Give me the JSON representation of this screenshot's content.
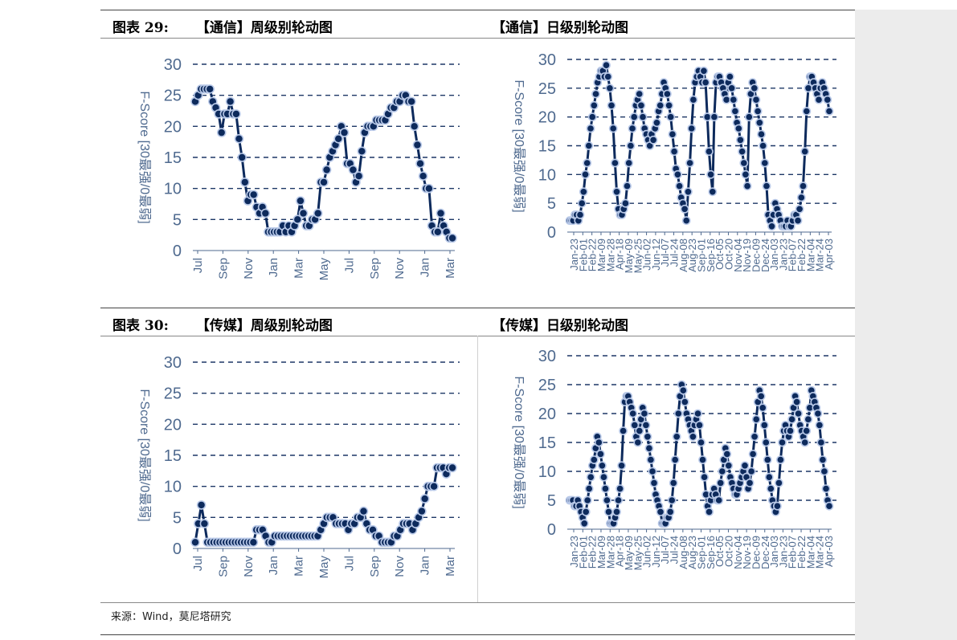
{
  "figures": [
    {
      "label": "图表 29:",
      "title": "【通信】周级别轮动图"
    },
    {
      "label": "",
      "title": "【通信】日级别轮动图"
    },
    {
      "label": "图表 30:",
      "title": "【传媒】周级别轮动图"
    },
    {
      "label": "",
      "title": "【传媒】日级别轮动图"
    }
  ],
  "source": "来源：Wind，莫尼塔研究",
  "colors": {
    "line": "#0d2a5c",
    "marker_fill": "#0d2a5c",
    "marker_edge": "#b9c9e8",
    "grid": "#1d3766",
    "axis_text": "#4f6a8f"
  },
  "chart_data": [
    {
      "type": "line",
      "title": "【通信】周级别轮动图",
      "ylabel": "F-Score [30最强/0最弱]",
      "ylim": [
        0,
        30
      ],
      "yticks": [
        "0",
        "5",
        "10",
        "15",
        "20",
        "25",
        "30"
      ],
      "xticks": [
        "Jul",
        "Sep",
        "Nov",
        "Jan",
        "Mar",
        "May",
        "Jul",
        "Sep",
        "Nov",
        "Jan",
        "Mar"
      ],
      "grid": "dashed horizontal",
      "values": [
        24,
        25,
        26,
        26,
        26,
        26,
        24,
        23,
        22,
        19,
        22,
        22,
        24,
        22,
        22,
        18,
        15,
        11,
        8,
        9,
        9,
        7,
        6,
        7,
        6,
        3,
        3,
        3,
        3,
        3,
        4,
        3,
        4,
        3,
        4,
        5,
        8,
        6,
        4,
        4,
        5,
        5,
        6,
        11,
        11,
        13,
        15,
        16,
        17,
        18,
        20,
        19,
        14,
        14,
        13,
        11,
        12,
        16,
        19,
        20,
        20,
        20,
        21,
        21,
        21,
        21,
        22,
        23,
        23,
        24,
        24,
        25,
        25,
        24,
        24,
        20,
        17,
        14,
        12,
        10,
        10,
        4,
        3,
        3,
        6,
        4,
        3,
        2,
        2
      ]
    },
    {
      "type": "line",
      "title": "【通信】日级别轮动图",
      "ylabel": "F-Score [30最强/0最弱]",
      "ylim": [
        0,
        30
      ],
      "yticks": [
        "0",
        "5",
        "10",
        "15",
        "20",
        "25",
        "30"
      ],
      "xticks": [
        "Jan-23",
        "Feb-01",
        "Feb-22",
        "Mar-09",
        "Mar-28",
        "Apr-18",
        "May-09",
        "May-25",
        "Jun-02",
        "Jun-12",
        "Jul-07",
        "Jul-24",
        "Aug-08",
        "Aug-23",
        "Sep-01",
        "Sep-16",
        "Oct-05",
        "Oct-20",
        "Nov-04",
        "Nov-19",
        "Dec-09",
        "Dec-24",
        "Jan-03",
        "Jan-23",
        "Feb-07",
        "Feb-22",
        "Mar-04",
        "Mar-24",
        "Apr-03"
      ],
      "grid": "dashed horizontal",
      "values": [
        2,
        2,
        2,
        3,
        3,
        2,
        3,
        5,
        7,
        10,
        12,
        15,
        18,
        20,
        22,
        24,
        26,
        27,
        28,
        28,
        27,
        29,
        27,
        25,
        22,
        18,
        12,
        7,
        4,
        3,
        3,
        4,
        5,
        8,
        12,
        15,
        18,
        20,
        22,
        23,
        24,
        22,
        20,
        18,
        17,
        16,
        15,
        17,
        16,
        18,
        19,
        21,
        22,
        24,
        26,
        25,
        24,
        22,
        20,
        17,
        14,
        11,
        10,
        8,
        6,
        5,
        4,
        2,
        7,
        12,
        18,
        23,
        26,
        27,
        28,
        27,
        26,
        28,
        26,
        20,
        14,
        10,
        7,
        20,
        26,
        27,
        27,
        26,
        25,
        24,
        23,
        26,
        27,
        25,
        23,
        21,
        19,
        18,
        16,
        14,
        12,
        10,
        8,
        20,
        24,
        26,
        25,
        23,
        21,
        19,
        17,
        15,
        12,
        8,
        3,
        2,
        1,
        3,
        5,
        4,
        3,
        2,
        1,
        1,
        1,
        2,
        1,
        1,
        2,
        3,
        3,
        2,
        4,
        6,
        8,
        14,
        21,
        25,
        27,
        27,
        26,
        25,
        24,
        23,
        25,
        26,
        25,
        24,
        23,
        21
      ]
    },
    {
      "type": "line",
      "title": "【传媒】周级别轮动图",
      "ylabel": "F-Score [30最强/0最弱]",
      "ylim": [
        0,
        30
      ],
      "yticks": [
        "0",
        "5",
        "10",
        "15",
        "20",
        "25",
        "30"
      ],
      "xticks": [
        "Jul",
        "Sep",
        "Nov",
        "Jan",
        "Mar",
        "May",
        "Jul",
        "Sep",
        "Nov",
        "Jan",
        "Mar"
      ],
      "grid": "dashed horizontal",
      "values": [
        1,
        4,
        7,
        4,
        1,
        1,
        1,
        1,
        1,
        1,
        1,
        1,
        1,
        1,
        1,
        1,
        1,
        1,
        1,
        1,
        3,
        3,
        3,
        2,
        1,
        1,
        2,
        2,
        2,
        2,
        2,
        2,
        2,
        2,
        2,
        2,
        2,
        2,
        2,
        2,
        2,
        3,
        4,
        5,
        5,
        5,
        4,
        4,
        4,
        4,
        3,
        4,
        4,
        5,
        5,
        6,
        4,
        3,
        3,
        2,
        2,
        1,
        1,
        1,
        1,
        2,
        2,
        3,
        4,
        4,
        4,
        3,
        4,
        5,
        6,
        8,
        10,
        10,
        10,
        13,
        13,
        13,
        12,
        13,
        13
      ]
    },
    {
      "type": "line",
      "title": "【传媒】日级别轮动图",
      "ylabel": "F-Score [30最强/0最弱]",
      "ylim": [
        0,
        30
      ],
      "yticks": [
        "0",
        "5",
        "10",
        "15",
        "20",
        "25",
        "30"
      ],
      "xticks": [
        "Jan-23",
        "Feb-01",
        "Feb-22",
        "Mar-09",
        "Mar-28",
        "Apr-18",
        "May-09",
        "May-25",
        "Jun-02",
        "Jun-12",
        "Jul-07",
        "Jul-24",
        "Aug-08",
        "Aug-23",
        "Sep-01",
        "Sep-16",
        "Oct-05",
        "Oct-20",
        "Nov-04",
        "Nov-19",
        "Dec-09",
        "Dec-24",
        "Jan-03",
        "Jan-23",
        "Feb-07",
        "Feb-22",
        "Mar-04",
        "Mar-24",
        "Apr-03"
      ],
      "grid": "dashed horizontal",
      "values": [
        5,
        5,
        5,
        4,
        4,
        5,
        4,
        3,
        2,
        1,
        3,
        5,
        7,
        9,
        11,
        12,
        14,
        16,
        15,
        13,
        11,
        9,
        7,
        5,
        3,
        1,
        1,
        1,
        2,
        3,
        5,
        7,
        11,
        17,
        22,
        23,
        23,
        22,
        21,
        20,
        18,
        16,
        15,
        17,
        19,
        21,
        20,
        18,
        16,
        14,
        12,
        10,
        8,
        6,
        5,
        4,
        3,
        1,
        1,
        1,
        2,
        2,
        3,
        5,
        8,
        12,
        16,
        20,
        23,
        25,
        24,
        22,
        20,
        19,
        18,
        17,
        16,
        18,
        19,
        20,
        18,
        15,
        12,
        9,
        6,
        4,
        3,
        5,
        6,
        7,
        6,
        5,
        5,
        8,
        10,
        12,
        14,
        13,
        11,
        9,
        8,
        7,
        6,
        6,
        7,
        8,
        9,
        10,
        11,
        9,
        7,
        8,
        10,
        13,
        16,
        19,
        22,
        24,
        23,
        21,
        18,
        15,
        12,
        9,
        7,
        5,
        4,
        3,
        4,
        8,
        12,
        15,
        17,
        18,
        17,
        16,
        17,
        19,
        21,
        23,
        22,
        20,
        18,
        17,
        16,
        15,
        17,
        19,
        21,
        24,
        23,
        22,
        21,
        20,
        18,
        15,
        12,
        10,
        7,
        5,
        4
      ]
    }
  ]
}
